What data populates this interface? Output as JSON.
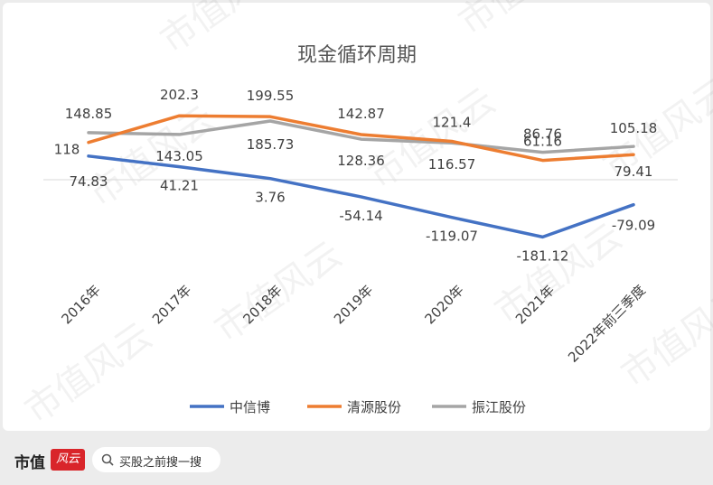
{
  "chart_data": {
    "type": "line",
    "title": "现金循环周期",
    "categories": [
      "2016年",
      "2017年",
      "2018年",
      "2019年",
      "2020年",
      "2021年",
      "2022年前三季度"
    ],
    "series": [
      {
        "name": "中信博",
        "color": "#4472c4",
        "values": [
          74.83,
          41.21,
          3.76,
          -54.14,
          -119.07,
          -181.12,
          -79.09
        ]
      },
      {
        "name": "清源股份",
        "color": "#ed7d31",
        "values": [
          118,
          202.3,
          199.55,
          142.87,
          121.4,
          61.16,
          79.41
        ]
      },
      {
        "name": "振江股份",
        "color": "#a5a5a5",
        "values": [
          148.85,
          143.05,
          185.73,
          128.36,
          116.57,
          86.76,
          105.18
        ]
      }
    ],
    "data_labels": [
      [
        "74.83",
        "41.21",
        "3.76",
        "-54.14",
        "-119.07",
        "-181.12",
        "-79.09"
      ],
      [
        "118",
        "202.3",
        "199.55",
        "142.87",
        "121.4",
        "61.16",
        "79.41"
      ],
      [
        "148.85",
        "143.05",
        "185.73",
        "128.36",
        "116.57",
        "86.76",
        "105.18"
      ]
    ],
    "xlabel": "",
    "ylabel": "",
    "ylim": [
      -200,
      250
    ],
    "grid": false,
    "legend_position": "bottom"
  },
  "footer": {
    "brand": "市值",
    "brand_logo": "风云",
    "search_icon": "search-icon",
    "search_text": "买股之前搜一搜"
  },
  "watermark": "市值风云"
}
